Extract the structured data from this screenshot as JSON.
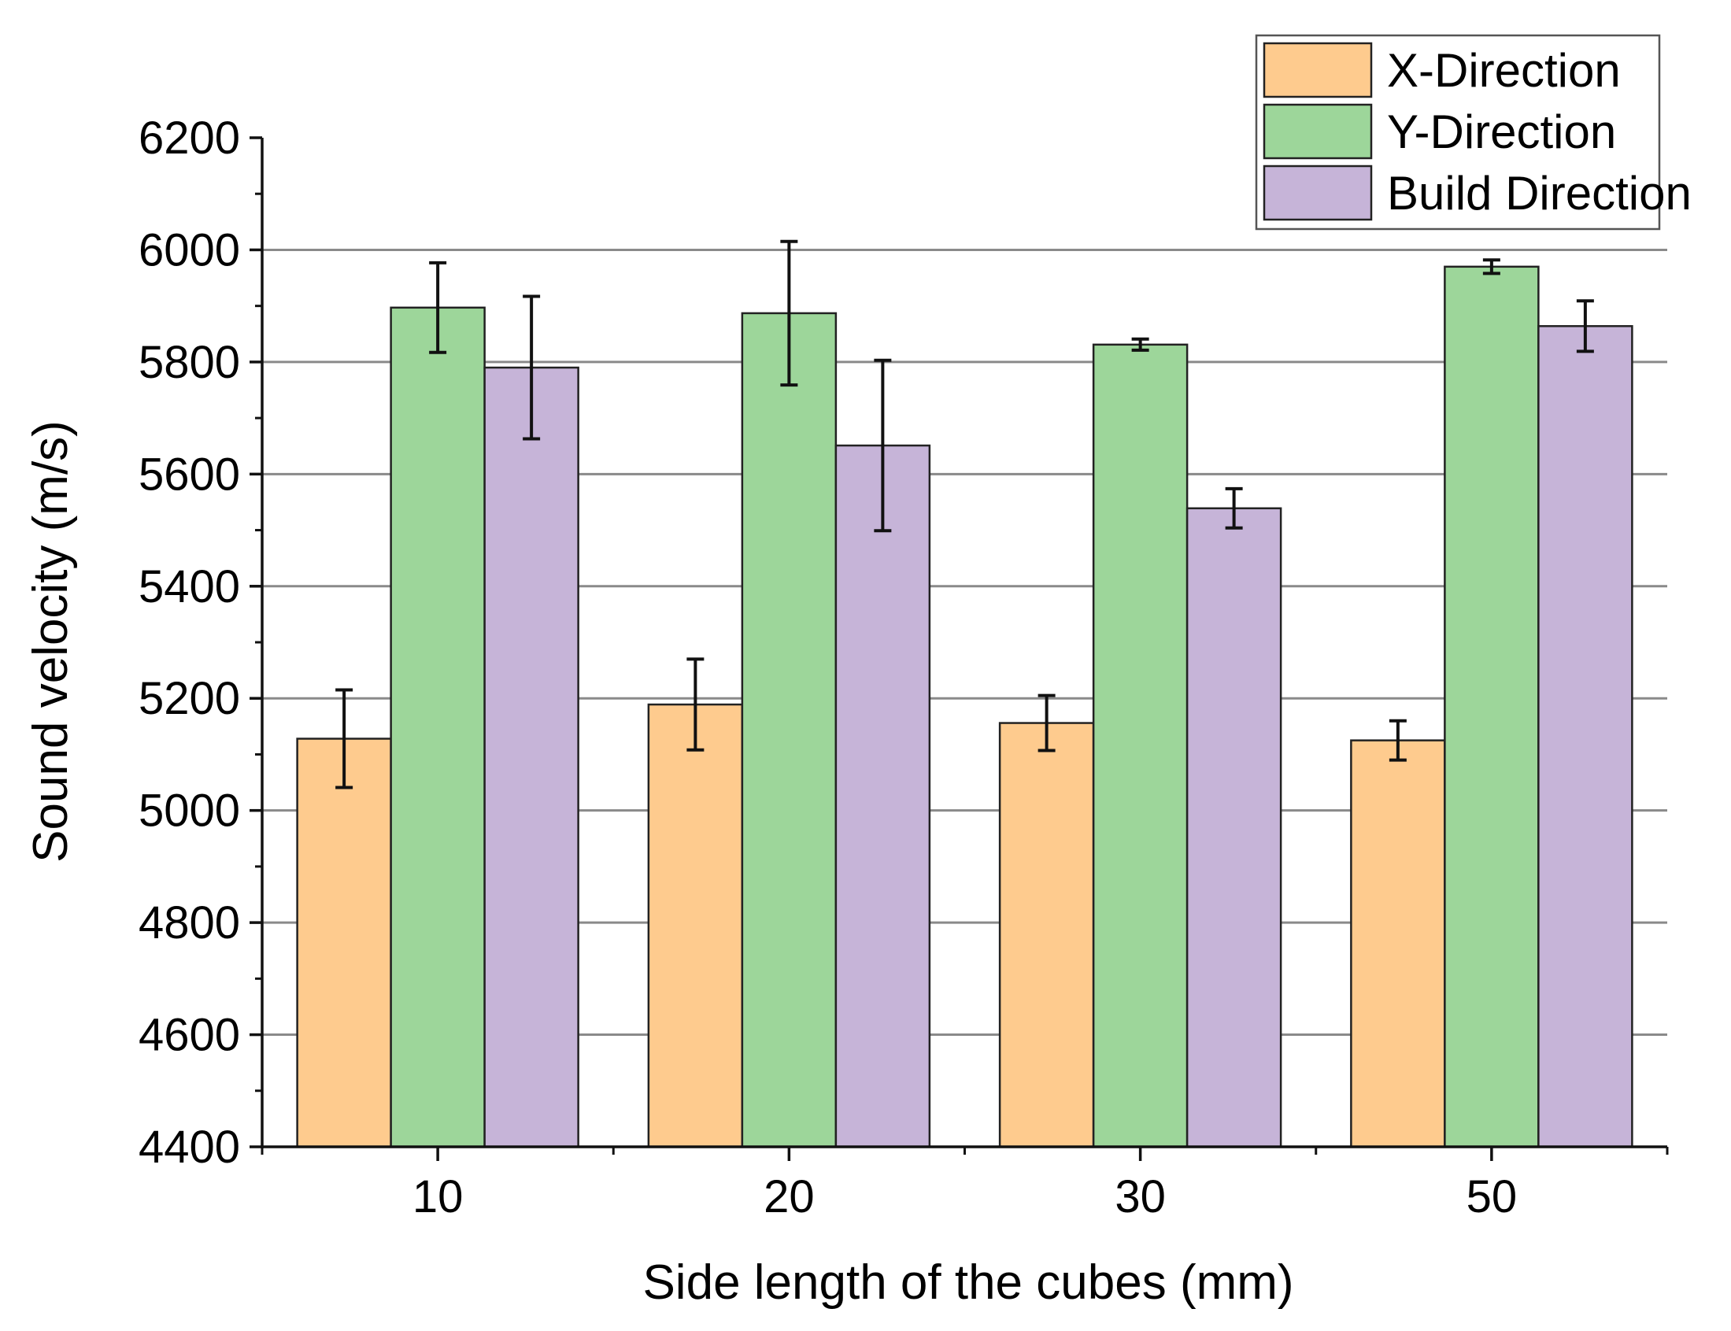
{
  "chart_data": {
    "type": "bar",
    "title": "",
    "xlabel": "Side length of the cubes (mm)",
    "ylabel": "Sound velocity (m/s)",
    "categories": [
      "10",
      "20",
      "30",
      "50"
    ],
    "ylim": [
      4400,
      6200
    ],
    "yticks": [
      4400,
      4600,
      4800,
      5000,
      5200,
      5400,
      5600,
      5800,
      6000,
      6200
    ],
    "grid": true,
    "legend_position": "top-right",
    "series": [
      {
        "name": "X-Direction",
        "color": "#FECB8E",
        "values": [
          5128,
          5189,
          5156,
          5125
        ],
        "errors": [
          87,
          81,
          49,
          35
        ]
      },
      {
        "name": "Y-Direction",
        "color": "#9DD69A",
        "values": [
          5897,
          5887,
          5831,
          5970
        ],
        "errors": [
          80,
          128,
          10,
          12
        ]
      },
      {
        "name": "Build Direction",
        "color": "#C6B4D8",
        "values": [
          5790,
          5651,
          5539,
          5864
        ],
        "errors": [
          127,
          152,
          35,
          45
        ]
      }
    ]
  }
}
